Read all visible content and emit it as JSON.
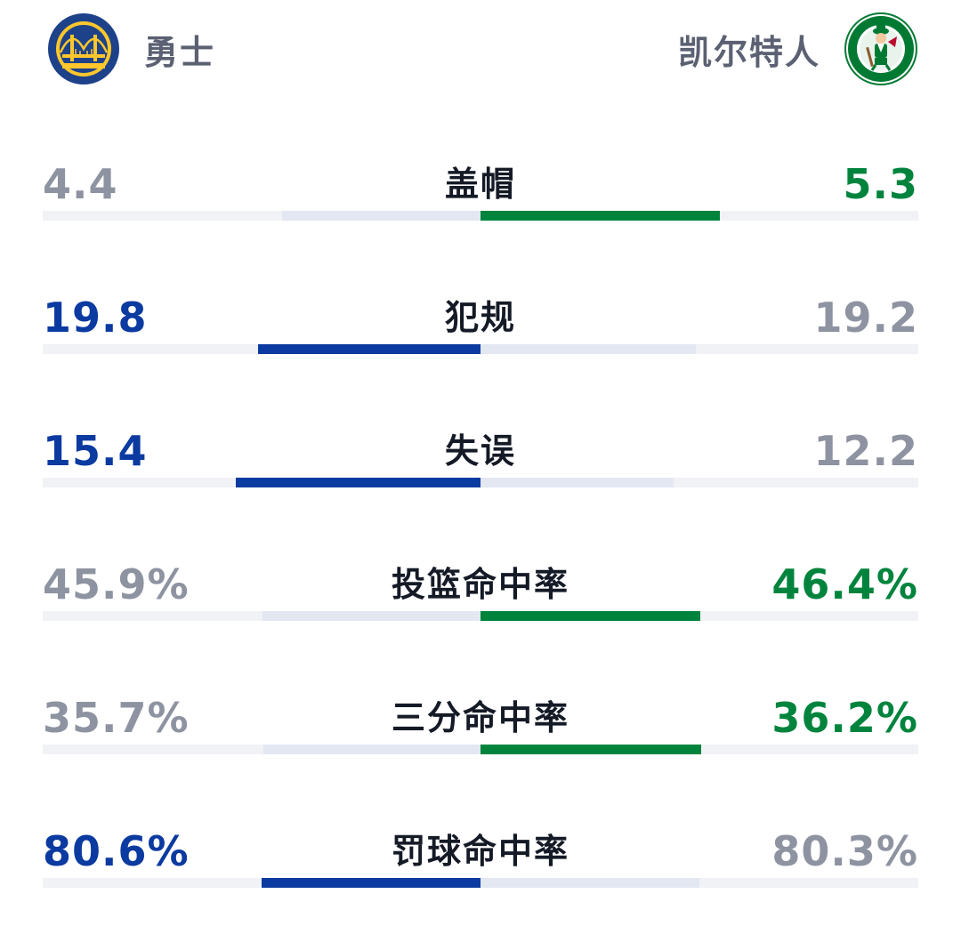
{
  "header": {
    "home": {
      "name": "勇士",
      "logo_icon": "warriors-logo-icon",
      "color": "#0b3aa0"
    },
    "away": {
      "name": "凯尔特人",
      "logo_icon": "celtics-logo-icon",
      "color": "#00843d"
    }
  },
  "stats": [
    {
      "label": "盖帽",
      "home": "4.4",
      "away": "5.3",
      "home_share": 0.454,
      "away_share": 0.546,
      "winner": "away"
    },
    {
      "label": "犯规",
      "home": "19.8",
      "away": "19.2",
      "home_share": 0.508,
      "away_share": 0.492,
      "winner": "home"
    },
    {
      "label": "失误",
      "home": "15.4",
      "away": "12.2",
      "home_share": 0.558,
      "away_share": 0.442,
      "winner": "home"
    },
    {
      "label": "投篮命中率",
      "home": "45.9%",
      "away": "46.4%",
      "home_share": 0.497,
      "away_share": 0.503,
      "winner": "away"
    },
    {
      "label": "三分命中率",
      "home": "35.7%",
      "away": "36.2%",
      "home_share": 0.496,
      "away_share": 0.504,
      "winner": "away"
    },
    {
      "label": "罚球命中率",
      "home": "80.6%",
      "away": "80.3%",
      "home_share": 0.501,
      "away_share": 0.499,
      "winner": "home"
    }
  ]
}
